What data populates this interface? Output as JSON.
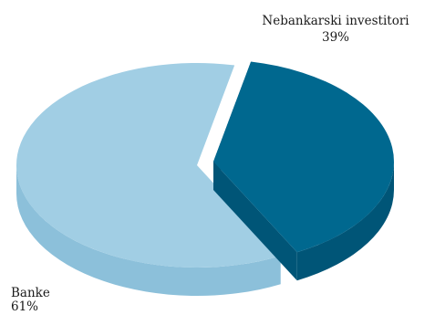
{
  "chart_data": {
    "type": "pie",
    "style": "3d-exploded",
    "categories": [
      "Nebankarski investitori",
      "Banke"
    ],
    "values": [
      39,
      61
    ],
    "value_labels": [
      "39%",
      "61%"
    ],
    "colors": [
      "#00688f",
      "#a1cee4"
    ],
    "side_colors": [
      "#005577",
      "#8cc0da"
    ],
    "exploded_slice": "Nebankarski investitori",
    "legend": "none"
  }
}
